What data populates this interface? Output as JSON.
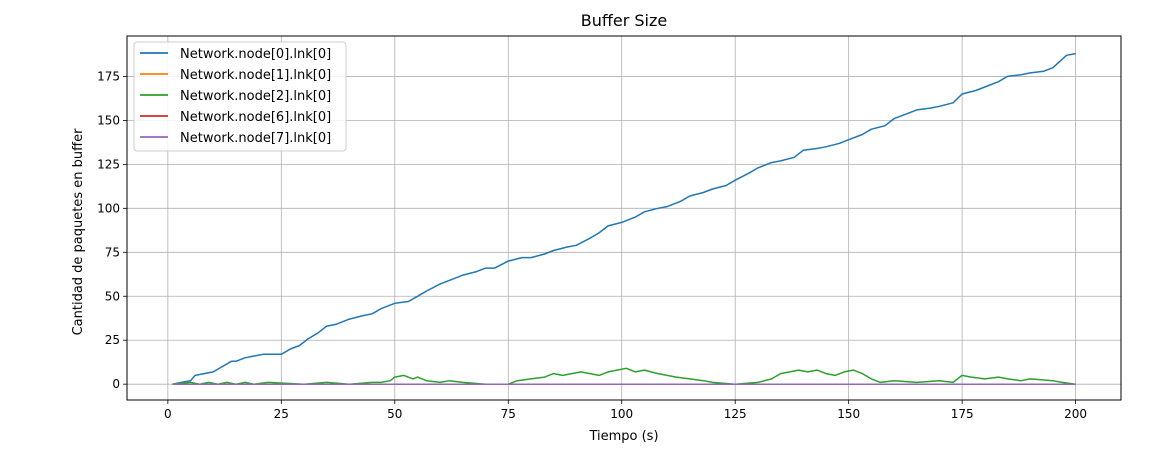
{
  "chart_data": {
    "type": "line",
    "title": "Buffer Size",
    "xlabel": "Tiempo (s)",
    "ylabel": "Cantidad de paquetes en buffer",
    "xlim": [
      -9,
      210
    ],
    "ylim": [
      -9,
      198
    ],
    "xticks": [
      0,
      25,
      50,
      75,
      100,
      125,
      150,
      175,
      200
    ],
    "yticks": [
      0,
      25,
      50,
      75,
      100,
      125,
      150,
      175
    ],
    "grid": true,
    "legend_position": "top-left",
    "series": [
      {
        "name": "Network.node[0].lnk[0]",
        "color": "#1f77b4",
        "x": [
          1,
          3,
          5,
          6,
          8,
          10,
          12,
          14,
          15,
          17,
          19,
          21,
          23,
          25,
          27,
          29,
          31,
          33,
          35,
          37,
          40,
          43,
          45,
          47,
          50,
          53,
          55,
          57,
          60,
          63,
          65,
          68,
          70,
          72,
          75,
          78,
          80,
          83,
          85,
          88,
          90,
          93,
          95,
          97,
          100,
          103,
          105,
          108,
          110,
          113,
          115,
          118,
          120,
          123,
          125,
          128,
          130,
          133,
          135,
          138,
          140,
          143,
          145,
          148,
          150,
          153,
          155,
          158,
          160,
          163,
          165,
          168,
          170,
          173,
          175,
          178,
          180,
          183,
          185,
          188,
          190,
          193,
          195,
          198,
          200
        ],
        "y": [
          0,
          1,
          2,
          5,
          6,
          7,
          10,
          13,
          13,
          15,
          16,
          17,
          17,
          17,
          20,
          22,
          26,
          29,
          33,
          34,
          37,
          39,
          40,
          43,
          46,
          47,
          50,
          53,
          57,
          60,
          62,
          64,
          66,
          66,
          70,
          72,
          72,
          74,
          76,
          78,
          79,
          83,
          86,
          90,
          92,
          95,
          98,
          100,
          101,
          104,
          107,
          109,
          111,
          113,
          116,
          120,
          123,
          126,
          127,
          129,
          133,
          134,
          135,
          137,
          139,
          142,
          145,
          147,
          151,
          154,
          156,
          157,
          158,
          160,
          165,
          167,
          169,
          172,
          175,
          176,
          177,
          178,
          180,
          187,
          188
        ]
      },
      {
        "name": "Network.node[1].lnk[0]",
        "color": "#ff7f0e",
        "x": [
          1,
          200
        ],
        "y": [
          0,
          0
        ]
      },
      {
        "name": "Network.node[2].lnk[0]",
        "color": "#2ca02c",
        "x": [
          1,
          5,
          7,
          9,
          11,
          13,
          15,
          17,
          19,
          22,
          30,
          35,
          40,
          45,
          47,
          49,
          50,
          52,
          54,
          55,
          57,
          60,
          62,
          65,
          70,
          75,
          77,
          80,
          83,
          85,
          87,
          89,
          91,
          93,
          95,
          97,
          99,
          101,
          103,
          105,
          108,
          110,
          112,
          115,
          118,
          120,
          125,
          130,
          133,
          135,
          137,
          139,
          141,
          143,
          145,
          147,
          149,
          151,
          153,
          155,
          157,
          160,
          165,
          170,
          173,
          175,
          177,
          180,
          183,
          185,
          188,
          190,
          195,
          197,
          200
        ],
        "y": [
          0,
          1,
          0,
          1,
          0,
          1,
          0,
          1,
          0,
          1,
          0,
          1,
          0,
          1,
          1,
          2,
          4,
          5,
          3,
          4,
          2,
          1,
          2,
          1,
          0,
          0,
          2,
          3,
          4,
          6,
          5,
          6,
          7,
          6,
          5,
          7,
          8,
          9,
          7,
          8,
          6,
          5,
          4,
          3,
          2,
          1,
          0,
          1,
          3,
          6,
          7,
          8,
          7,
          8,
          6,
          5,
          7,
          8,
          6,
          3,
          1,
          2,
          1,
          2,
          1,
          5,
          4,
          3,
          4,
          3,
          2,
          3,
          2,
          1,
          0
        ]
      },
      {
        "name": "Network.node[6].lnk[0]",
        "color": "#d62728",
        "x": [
          1,
          200
        ],
        "y": [
          0,
          0
        ]
      },
      {
        "name": "Network.node[7].lnk[0]",
        "color": "#9467bd",
        "x": [
          1,
          200
        ],
        "y": [
          0,
          0
        ]
      }
    ]
  }
}
